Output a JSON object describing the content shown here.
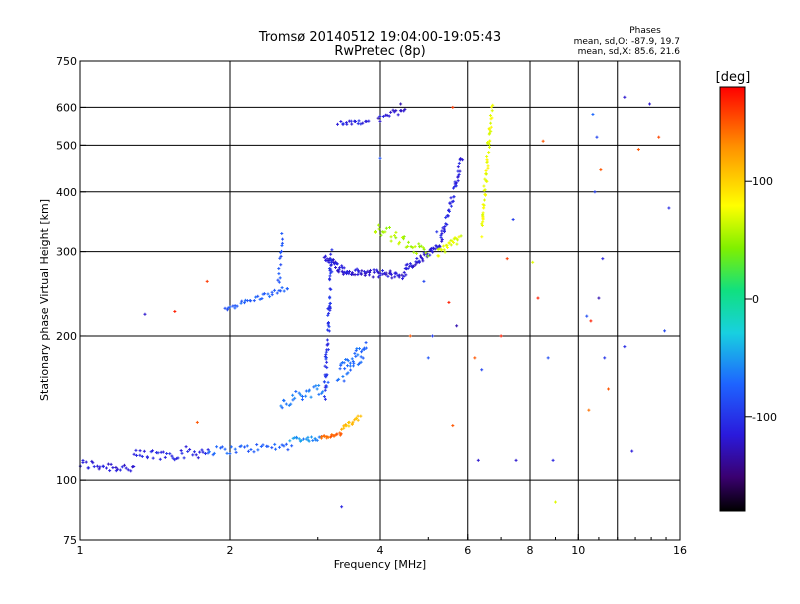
{
  "chart_data": {
    "type": "scatter",
    "title": "Tromsø 20140512 19:04:00-19:05:43",
    "subtitle": "RwPretec (8p)",
    "stats": {
      "heading": "Phases",
      "line1": "mean, sd,O: -87.9, 19.7",
      "line2": "mean, sd,X:  85.6, 21.6"
    },
    "xlabel": "Frequency [MHz]",
    "ylabel": "Stationary phase Virtual Height [km]",
    "x_scale": "log",
    "y_scale": "log",
    "xlim": [
      1,
      16
    ],
    "ylim": [
      75,
      750
    ],
    "x_ticks": [
      1,
      2,
      4,
      6,
      8,
      10,
      16
    ],
    "x_tick_labels": [
      "1",
      "2",
      "4",
      "6",
      "8",
      "10",
      "16"
    ],
    "x_grid": [
      2,
      4,
      6,
      8,
      10,
      12.0
    ],
    "y_ticks": [
      75,
      100,
      200,
      300,
      400,
      500,
      600,
      750
    ],
    "y_tick_labels": [
      "75",
      "100",
      "200",
      "300",
      "400",
      "500",
      "600",
      "750"
    ],
    "y_grid": [
      100,
      200,
      300,
      400,
      500,
      600
    ],
    "grid": true,
    "colorbar": {
      "label": "[deg]",
      "min": -180,
      "max": 180,
      "ticks": [
        100,
        0,
        -100
      ],
      "tick_labels": [
        "100",
        "0",
        "-100"
      ]
    },
    "series": [
      {
        "comment_free": true,
        "traces": [
          {
            "f0": 1.0,
            "f1": 1.28,
            "h0": 108,
            "h1": 106,
            "phase": -115,
            "n": 30,
            "jit": 0.025
          },
          {
            "f0": 1.28,
            "f1": 1.8,
            "h0": 112,
            "h1": 115,
            "phase": -110,
            "n": 40,
            "jit": 0.03
          },
          {
            "f0": 1.8,
            "f1": 2.65,
            "h0": 115,
            "h1": 118,
            "phase": -75,
            "n": 35,
            "jit": 0.02
          },
          {
            "f0": 2.65,
            "f1": 3.05,
            "h0": 122,
            "h1": 122,
            "phase": -55,
            "n": 20,
            "jit": 0.012
          },
          {
            "f0": 3.05,
            "f1": 3.35,
            "h0": 123,
            "h1": 125,
            "phase": 145,
            "n": 18,
            "jit": 0.008
          },
          {
            "f0": 3.35,
            "f1": 3.65,
            "h0": 128,
            "h1": 135,
            "phase": 110,
            "n": 18,
            "jit": 0.012
          },
          {
            "f0": 1.95,
            "f1": 2.62,
            "h0": 228,
            "h1": 252,
            "phase": -75,
            "n": 34,
            "jit": 0.012
          },
          {
            "f0": 2.5,
            "f1": 2.55,
            "h0": 255,
            "h1": 325,
            "phase": -85,
            "n": 14,
            "jit": 0.02
          },
          {
            "f0": 2.52,
            "f1": 3.15,
            "h0": 145,
            "h1": 158,
            "phase": -65,
            "n": 30,
            "jit": 0.03
          },
          {
            "f0": 3.1,
            "f1": 3.45,
            "h0": 292,
            "h1": 270,
            "phase": -115,
            "n": 35,
            "jit": 0.02
          },
          {
            "f0": 3.45,
            "f1": 4.5,
            "h0": 272,
            "h1": 268,
            "phase": -118,
            "n": 55,
            "jit": 0.018
          },
          {
            "f0": 4.5,
            "f1": 5.3,
            "h0": 275,
            "h1": 310,
            "phase": -115,
            "n": 45,
            "jit": 0.02
          },
          {
            "f0": 5.3,
            "f1": 5.85,
            "h0": 315,
            "h1": 470,
            "phase": -110,
            "n": 45,
            "jit": 0.025
          },
          {
            "f0": 3.9,
            "f1": 5.0,
            "h0": 340,
            "h1": 295,
            "phase": 55,
            "n": 35,
            "jit": 0.03
          },
          {
            "f0": 5.2,
            "f1": 5.8,
            "h0": 298,
            "h1": 320,
            "phase": 70,
            "n": 25,
            "jit": 0.02
          },
          {
            "f0": 6.4,
            "f1": 6.7,
            "h0": 330,
            "h1": 600,
            "phase": 75,
            "n": 55,
            "jit": 0.04
          },
          {
            "f0": 3.1,
            "f1": 3.2,
            "h0": 150,
            "h1": 300,
            "phase": -100,
            "n": 60,
            "jit": 0.05
          },
          {
            "f0": 3.3,
            "f1": 3.75,
            "h0": 165,
            "h1": 190,
            "phase": -70,
            "n": 40,
            "jit": 0.05
          },
          {
            "f0": 3.3,
            "f1": 3.8,
            "h0": 555,
            "h1": 560,
            "phase": -110,
            "n": 18,
            "jit": 0.01
          },
          {
            "f0": 3.95,
            "f1": 4.5,
            "h0": 565,
            "h1": 600,
            "phase": -118,
            "n": 16,
            "jit": 0.02
          }
        ],
        "scattered": [
          [
            1.35,
            222,
            -120
          ],
          [
            1.55,
            225,
            170
          ],
          [
            1.8,
            260,
            160
          ],
          [
            1.72,
            132,
            150
          ],
          [
            3.35,
            88,
            -110
          ],
          [
            4.4,
            610,
            -130
          ],
          [
            4.0,
            470,
            -80
          ],
          [
            4.6,
            200,
            150
          ],
          [
            4.9,
            260,
            -90
          ],
          [
            5.0,
            180,
            -80
          ],
          [
            5.1,
            200,
            -95
          ],
          [
            5.2,
            330,
            -100
          ],
          [
            5.5,
            235,
            170
          ],
          [
            5.7,
            210,
            -130
          ],
          [
            5.6,
            600,
            160
          ],
          [
            5.6,
            130,
            150
          ],
          [
            6.2,
            180,
            150
          ],
          [
            6.4,
            170,
            -90
          ],
          [
            6.3,
            110,
            -120
          ],
          [
            7.2,
            290,
            160
          ],
          [
            7.5,
            110,
            -120
          ],
          [
            7.0,
            200,
            170
          ],
          [
            7.4,
            350,
            -95
          ],
          [
            8.1,
            285,
            70
          ],
          [
            8.3,
            240,
            170
          ],
          [
            8.5,
            510,
            150
          ],
          [
            8.7,
            180,
            -85
          ],
          [
            9.0,
            90,
            70
          ],
          [
            8.9,
            110,
            -110
          ],
          [
            10.4,
            220,
            -85
          ],
          [
            10.6,
            215,
            170
          ],
          [
            10.8,
            400,
            -95
          ],
          [
            10.7,
            580,
            -70
          ],
          [
            10.9,
            520,
            -90
          ],
          [
            11.1,
            445,
            150
          ],
          [
            11.2,
            290,
            -110
          ],
          [
            11.3,
            180,
            -100
          ],
          [
            11.0,
            240,
            -130
          ],
          [
            12.4,
            190,
            -105
          ],
          [
            12.4,
            630,
            -120
          ],
          [
            12.8,
            115,
            -115
          ],
          [
            13.2,
            490,
            150
          ],
          [
            13.9,
            610,
            -120
          ],
          [
            14.5,
            520,
            155
          ],
          [
            14.9,
            205,
            -90
          ],
          [
            15.2,
            370,
            -105
          ],
          [
            11.5,
            155,
            150
          ],
          [
            10.5,
            140,
            140
          ]
        ]
      }
    ]
  }
}
